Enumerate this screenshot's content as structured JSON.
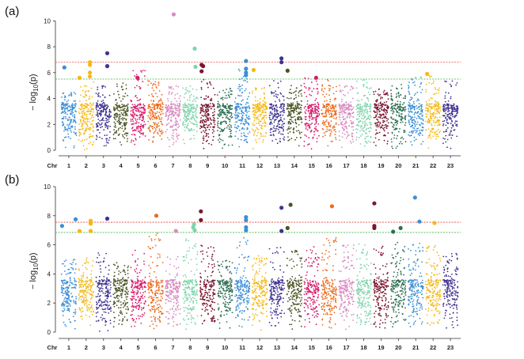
{
  "chart_data": [
    {
      "type": "scatter",
      "panel_label": "(a)",
      "ylabel": "− log10(p)",
      "ylabel_main": "− log",
      "ylabel_sub": "10",
      "ylabel_tail": "(p)",
      "xlabel_prefix": "Chr",
      "ylim": [
        0,
        11
      ],
      "yticks": [
        0,
        2,
        4,
        6,
        8,
        10
      ],
      "thresholds": [
        {
          "value": 6.8,
          "color": "#e0443a"
        },
        {
          "value": 5.5,
          "color": "#3cb83c"
        }
      ],
      "chromosomes": [
        "1",
        "2",
        "3",
        "4",
        "5",
        "6",
        "7",
        "8",
        "9",
        "10",
        "11",
        "12",
        "13",
        "14",
        "15",
        "16",
        "17",
        "18",
        "19",
        "20",
        "21",
        "22",
        "23"
      ],
      "chromosome_colors": [
        "#3b8fd6",
        "#f5b915",
        "#3f3391",
        "#4a5524",
        "#d61e6c",
        "#ec6b1d",
        "#d98ac0",
        "#7ed4ab",
        "#7a1630",
        "#2e6e54",
        "#3b8fd6",
        "#f5b915",
        "#3f3391",
        "#4a5524",
        "#d61e6c",
        "#ec6b1d",
        "#d98ac0",
        "#7ed4ab",
        "#7a1630",
        "#2e6e54",
        "#3b8fd6",
        "#f5b915",
        "#3f3391"
      ],
      "chromosome_peaks": [
        4.5,
        5.3,
        5.0,
        5.2,
        6.2,
        5.5,
        5.0,
        5.0,
        5.5,
        4.8,
        6.3,
        5.0,
        5.5,
        5.0,
        5.6,
        5.5,
        5.0,
        5.5,
        4.8,
        5.1,
        5.8,
        5.8,
        5.4
      ],
      "significant_snps": [
        {
          "chr": 1,
          "pos": 0.2,
          "y": 6.4
        },
        {
          "chr": 2,
          "pos": 0.05,
          "y": 5.6
        },
        {
          "chr": 2,
          "pos": 0.75,
          "y": 6.8
        },
        {
          "chr": 2,
          "pos": 0.75,
          "y": 6.6
        },
        {
          "chr": 2,
          "pos": 0.75,
          "y": 6.0
        },
        {
          "chr": 2,
          "pos": 0.75,
          "y": 5.7
        },
        {
          "chr": 3,
          "pos": 0.75,
          "y": 7.5
        },
        {
          "chr": 3,
          "pos": 0.75,
          "y": 6.5
        },
        {
          "chr": 5,
          "pos": 0.45,
          "y": 5.6
        },
        {
          "chr": 7,
          "pos": 0.55,
          "y": 10.5
        },
        {
          "chr": 8,
          "pos": 0.8,
          "y": 7.85
        },
        {
          "chr": 8,
          "pos": 0.85,
          "y": 6.45
        },
        {
          "chr": 9,
          "pos": 0.1,
          "y": 6.6
        },
        {
          "chr": 9,
          "pos": 0.2,
          "y": 6.5
        },
        {
          "chr": 9,
          "pos": 0.1,
          "y": 6.1
        },
        {
          "chr": 11,
          "pos": 0.75,
          "y": 6.9
        },
        {
          "chr": 11,
          "pos": 0.75,
          "y": 6.3
        },
        {
          "chr": 11,
          "pos": 0.75,
          "y": 6.0
        },
        {
          "chr": 11,
          "pos": 0.75,
          "y": 5.8
        },
        {
          "chr": 12,
          "pos": 0.1,
          "y": 6.2
        },
        {
          "chr": 13,
          "pos": 0.8,
          "y": 7.1
        },
        {
          "chr": 13,
          "pos": 0.8,
          "y": 6.8
        },
        {
          "chr": 14,
          "pos": 0.05,
          "y": 6.15
        },
        {
          "chr": 15,
          "pos": 0.8,
          "y": 5.6
        },
        {
          "chr": 22,
          "pos": 0.1,
          "y": 5.9
        }
      ]
    },
    {
      "type": "scatter",
      "panel_label": "(b)",
      "ylabel": "− log10(p)",
      "ylabel_main": "− log",
      "ylabel_sub": "10",
      "ylabel_tail": "(p)",
      "xlabel_prefix": "Chr",
      "ylim": [
        0,
        10
      ],
      "yticks": [
        0,
        2,
        4,
        6,
        8,
        10
      ],
      "thresholds": [
        {
          "value": 7.55,
          "color": "#e0443a"
        },
        {
          "value": 6.85,
          "color": "#3cb83c"
        }
      ],
      "chromosomes": [
        "1",
        "2",
        "3",
        "4",
        "5",
        "6",
        "7",
        "8",
        "9",
        "10",
        "11",
        "12",
        "13",
        "14",
        "15",
        "16",
        "17",
        "18",
        "19",
        "20",
        "21",
        "22",
        "23"
      ],
      "chromosome_colors": [
        "#3b8fd6",
        "#f5b915",
        "#3f3391",
        "#4a5524",
        "#d61e6c",
        "#ec6b1d",
        "#d98ac0",
        "#7ed4ab",
        "#7a1630",
        "#2e6e54",
        "#3b8fd6",
        "#f5b915",
        "#3f3391",
        "#4a5524",
        "#d61e6c",
        "#ec6b1d",
        "#d98ac0",
        "#7ed4ab",
        "#7a1630",
        "#2e6e54",
        "#3b8fd6",
        "#f5b915",
        "#3f3391"
      ],
      "chromosome_peaks": [
        5.0,
        5.2,
        5.5,
        5.0,
        5.8,
        6.8,
        5.2,
        6.5,
        6.0,
        5.0,
        6.5,
        5.3,
        6.0,
        5.7,
        6.0,
        6.5,
        6.0,
        6.2,
        6.0,
        6.2,
        6.3,
        6.0,
        5.5
      ],
      "significant_snps": [
        {
          "chr": 1,
          "pos": 0.05,
          "y": 7.3
        },
        {
          "chr": 1,
          "pos": 0.95,
          "y": 7.75
        },
        {
          "chr": 2,
          "pos": 0.05,
          "y": 6.95
        },
        {
          "chr": 2,
          "pos": 0.8,
          "y": 7.65
        },
        {
          "chr": 2,
          "pos": 0.8,
          "y": 7.45
        },
        {
          "chr": 2,
          "pos": 0.8,
          "y": 6.95
        },
        {
          "chr": 3,
          "pos": 0.75,
          "y": 7.8
        },
        {
          "chr": 6,
          "pos": 0.55,
          "y": 8.0
        },
        {
          "chr": 7,
          "pos": 0.7,
          "y": 6.95
        },
        {
          "chr": 8,
          "pos": 0.75,
          "y": 7.4
        },
        {
          "chr": 8,
          "pos": 0.7,
          "y": 7.2
        },
        {
          "chr": 8,
          "pos": 0.8,
          "y": 7.0
        },
        {
          "chr": 9,
          "pos": 0.05,
          "y": 8.3
        },
        {
          "chr": 9,
          "pos": 0.05,
          "y": 7.7
        },
        {
          "chr": 11,
          "pos": 0.75,
          "y": 7.9
        },
        {
          "chr": 11,
          "pos": 0.75,
          "y": 7.7
        },
        {
          "chr": 11,
          "pos": 0.75,
          "y": 7.2
        },
        {
          "chr": 11,
          "pos": 0.75,
          "y": 7.0
        },
        {
          "chr": 13,
          "pos": 0.8,
          "y": 8.55
        },
        {
          "chr": 13,
          "pos": 0.8,
          "y": 6.95
        },
        {
          "chr": 14,
          "pos": 0.05,
          "y": 7.15
        },
        {
          "chr": 14,
          "pos": 0.25,
          "y": 8.75
        },
        {
          "chr": 16,
          "pos": 0.7,
          "y": 8.65
        },
        {
          "chr": 19,
          "pos": 0.05,
          "y": 8.85
        },
        {
          "chr": 19,
          "pos": 0.05,
          "y": 7.3
        },
        {
          "chr": 19,
          "pos": 0.05,
          "y": 7.15
        },
        {
          "chr": 20,
          "pos": 0.15,
          "y": 6.9
        },
        {
          "chr": 20,
          "pos": 0.65,
          "y": 7.15
        },
        {
          "chr": 21,
          "pos": 0.45,
          "y": 9.25
        },
        {
          "chr": 21,
          "pos": 0.75,
          "y": 7.6
        },
        {
          "chr": 22,
          "pos": 0.6,
          "y": 7.5
        }
      ]
    }
  ]
}
